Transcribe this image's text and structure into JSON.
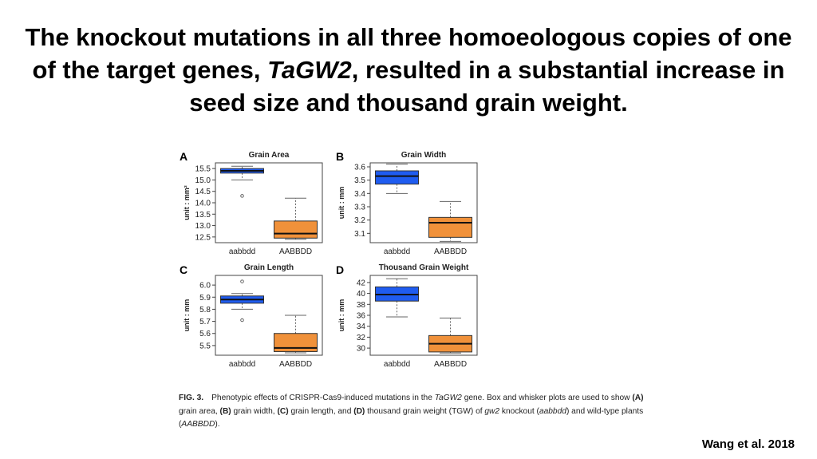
{
  "slide": {
    "title_part1": "The knockout mutations in all three homoeologous copies of one of the target genes,",
    "title_gene": "TaGW2",
    "title_part2": ", resulted in a substantial increase in seed size and thousand grain weight."
  },
  "colors": {
    "mutant_box": "#1f5cf0",
    "wildtype_box": "#f0913a",
    "box_edge": "#333333"
  },
  "caption": {
    "fig_label": "FIG. 3.",
    "t1": "Phenotypic effects of CRISPR-Cas9-induced mutations in the ",
    "t2": "TaGW2",
    "t3": " gene. Box and whisker plots are used to show ",
    "t4": "(A)",
    "t5": " grain area, ",
    "t6": "(B)",
    "t7": " grain width, ",
    "t8": "(C)",
    "t9": " grain length, and ",
    "t10": "(D)",
    "t11": " thousand grain weight (TGW) of ",
    "t12": "gw2",
    "t13": " knockout (",
    "t14": "aabbdd",
    "t15": ") and wild-type plants (",
    "t16": "AABBDD",
    "t17": ")."
  },
  "citation": "Wang et al. 2018",
  "chart_data": [
    {
      "panel": "A",
      "type": "box",
      "title": "Grain Area",
      "ylabel": "unit : mm²",
      "categories": [
        "aabbdd",
        "AABBDD"
      ],
      "ylim": [
        12.25,
        15.75
      ],
      "yticks": [
        12.5,
        13.0,
        13.5,
        14.0,
        14.5,
        15.0,
        15.5
      ],
      "ytick_labels": [
        "12.5",
        "13.0",
        "13.5",
        "14.0",
        "14.5",
        "15.0",
        "15.5"
      ],
      "boxes": [
        {
          "min": 15.0,
          "q1": 15.3,
          "median": 15.4,
          "q3": 15.5,
          "max": 15.6,
          "outliers": [
            14.3
          ]
        },
        {
          "min": 12.4,
          "q1": 12.45,
          "median": 12.65,
          "q3": 13.2,
          "max": 14.2,
          "outliers": []
        }
      ]
    },
    {
      "panel": "B",
      "type": "box",
      "title": "Grain Width",
      "ylabel": "unit : mm",
      "categories": [
        "aabbdd",
        "AABBDD"
      ],
      "ylim": [
        3.03,
        3.63
      ],
      "yticks": [
        3.1,
        3.2,
        3.3,
        3.4,
        3.5,
        3.6
      ],
      "ytick_labels": [
        "3.1",
        "3.2",
        "3.3",
        "3.4",
        "3.5",
        "3.6"
      ],
      "boxes": [
        {
          "min": 3.4,
          "q1": 3.47,
          "median": 3.53,
          "q3": 3.57,
          "max": 3.62,
          "outliers": []
        },
        {
          "min": 3.04,
          "q1": 3.07,
          "median": 3.18,
          "q3": 3.22,
          "max": 3.34,
          "outliers": []
        }
      ]
    },
    {
      "panel": "C",
      "type": "box",
      "title": "Grain Length",
      "ylabel": "unit : mm",
      "categories": [
        "aabbdd",
        "AABBDD"
      ],
      "ylim": [
        5.42,
        6.08
      ],
      "yticks": [
        5.5,
        5.6,
        5.7,
        5.8,
        5.9,
        6.0
      ],
      "ytick_labels": [
        "5.5",
        "5.6",
        "5.7",
        "5.8",
        "5.9",
        "6.0"
      ],
      "boxes": [
        {
          "min": 5.8,
          "q1": 5.85,
          "median": 5.88,
          "q3": 5.91,
          "max": 5.93,
          "outliers": [
            6.03,
            5.71
          ]
        },
        {
          "min": 5.44,
          "q1": 5.45,
          "median": 5.48,
          "q3": 5.6,
          "max": 5.75,
          "outliers": []
        }
      ]
    },
    {
      "panel": "D",
      "type": "box",
      "title": "Thousand Grain Weight",
      "ylabel": "unit : mm",
      "categories": [
        "aabbdd",
        "AABBDD"
      ],
      "ylim": [
        28.7,
        43.3
      ],
      "yticks": [
        30,
        32,
        34,
        36,
        38,
        40,
        42
      ],
      "ytick_labels": [
        "30",
        "32",
        "34",
        "36",
        "38",
        "40",
        "42"
      ],
      "boxes": [
        {
          "min": 35.7,
          "q1": 38.6,
          "median": 39.8,
          "q3": 41.2,
          "max": 42.7,
          "outliers": []
        },
        {
          "min": 29.1,
          "q1": 29.3,
          "median": 30.8,
          "q3": 32.3,
          "max": 35.5,
          "outliers": []
        }
      ]
    }
  ]
}
